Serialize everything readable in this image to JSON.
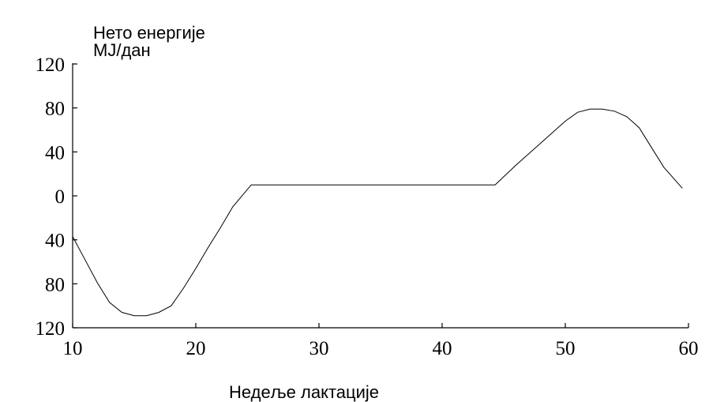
{
  "chart_data": {
    "type": "line",
    "ylabel_lines": [
      "Нето енергије",
      "MJ/дан"
    ],
    "xlabel": "Недеље лактације",
    "x_ticks": [
      "10",
      "20",
      "30",
      "40",
      "50",
      "60"
    ],
    "y_ticks": [
      "120",
      "80",
      "40",
      "0",
      "40",
      "80",
      "120"
    ],
    "x_range": [
      10,
      60
    ],
    "y_range": [
      -120,
      120
    ],
    "grid": false,
    "series": [
      {
        "x": [
          10,
          11,
          12,
          13,
          14,
          15,
          16,
          17,
          18,
          19,
          20,
          21,
          22,
          23,
          24.5,
          30,
          35,
          40,
          44.3,
          46,
          48,
          50,
          51,
          52,
          53,
          54,
          55,
          56,
          57,
          58,
          59.5
        ],
        "y": [
          -37,
          -58,
          -79,
          -97,
          -106,
          -109,
          -109,
          -106,
          -100,
          -84,
          -66,
          -47,
          -29,
          -10,
          10,
          10,
          10,
          10,
          10,
          28,
          48,
          68,
          76,
          79,
          79,
          77,
          72,
          62,
          44,
          26,
          7
        ]
      }
    ]
  }
}
